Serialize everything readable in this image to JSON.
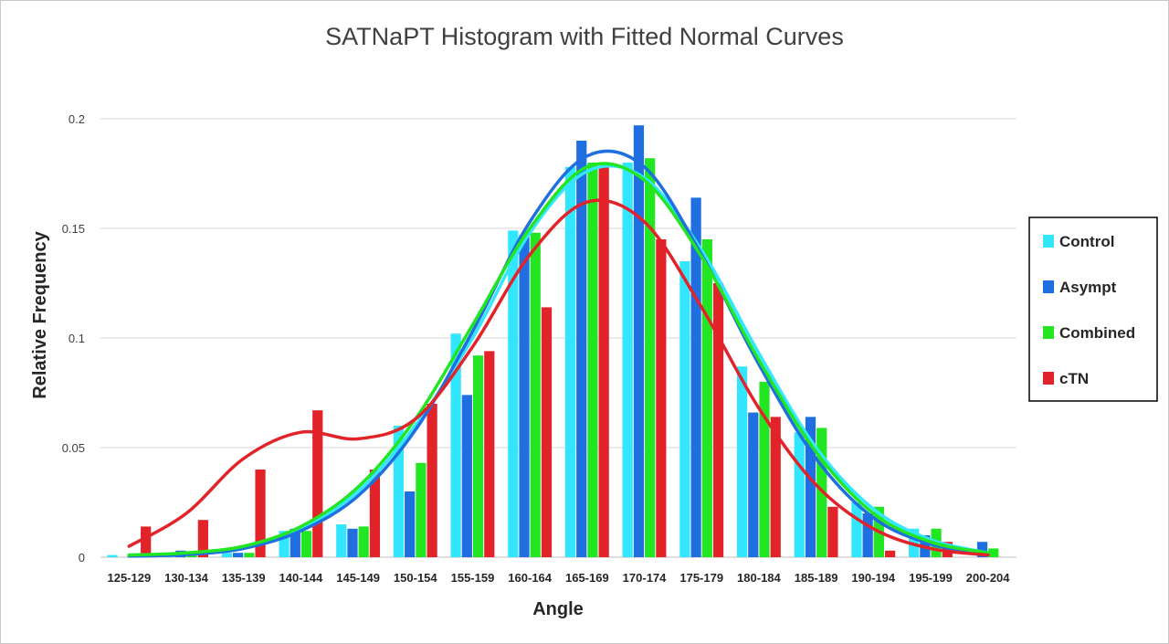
{
  "chart_data": {
    "type": "bar",
    "title": "SATNaPT Histogram with Fitted Normal Curves",
    "xlabel": "Angle",
    "ylabel": "Relative Frequency",
    "ylim": [
      0,
      0.2
    ],
    "yticks": [
      "0",
      "0.05",
      "0.1",
      "0.15",
      "0.2"
    ],
    "grid": true,
    "legend_position": "right",
    "categories": [
      "125-129",
      "130-134",
      "135-139",
      "140-144",
      "145-149",
      "150-154",
      "155-159",
      "160-164",
      "165-169",
      "170-174",
      "175-179",
      "180-184",
      "185-189",
      "190-194",
      "195-199",
      "200-204"
    ],
    "series": [
      {
        "name": "Control",
        "color": "#33e6ff",
        "values": [
          0.001,
          0.0015,
          0.002,
          0.012,
          0.015,
          0.06,
          0.102,
          0.149,
          0.178,
          0.18,
          0.135,
          0.087,
          0.057,
          0.025,
          0.013,
          0.0
        ]
      },
      {
        "name": "Asympt",
        "color": "#1f6fe0",
        "values": [
          0.0,
          0.003,
          0.002,
          0.013,
          0.013,
          0.03,
          0.074,
          0.147,
          0.19,
          0.197,
          0.164,
          0.066,
          0.064,
          0.02,
          0.01,
          0.007
        ]
      },
      {
        "name": "Combined",
        "color": "#22e622",
        "values": [
          0.0,
          0.001,
          0.002,
          0.012,
          0.014,
          0.043,
          0.092,
          0.148,
          0.18,
          0.182,
          0.145,
          0.08,
          0.059,
          0.023,
          0.013,
          0.004
        ]
      },
      {
        "name": "cTN",
        "color": "#e3232a",
        "values": [
          0.014,
          0.017,
          0.04,
          0.067,
          0.04,
          0.07,
          0.094,
          0.114,
          0.178,
          0.145,
          0.125,
          0.064,
          0.023,
          0.003,
          0.007,
          0.0
        ]
      }
    ],
    "fitted_curves": [
      {
        "series": "Control",
        "color": "#33e6ff",
        "values": [
          0.001,
          0.0015,
          0.004,
          0.013,
          0.03,
          0.06,
          0.1,
          0.148,
          0.176,
          0.173,
          0.14,
          0.093,
          0.05,
          0.022,
          0.008,
          0.002
        ]
      },
      {
        "series": "Asympt",
        "color": "#1f6fe0",
        "values": [
          0.0005,
          0.0012,
          0.004,
          0.012,
          0.028,
          0.058,
          0.103,
          0.153,
          0.183,
          0.178,
          0.138,
          0.088,
          0.045,
          0.018,
          0.006,
          0.0015
        ]
      },
      {
        "series": "Combined",
        "color": "#22e622",
        "values": [
          0.001,
          0.002,
          0.005,
          0.014,
          0.032,
          0.063,
          0.106,
          0.15,
          0.178,
          0.172,
          0.137,
          0.09,
          0.048,
          0.02,
          0.007,
          0.002
        ]
      },
      {
        "series": "cTN",
        "color": "#e3232a",
        "values": [
          0.005,
          0.02,
          0.045,
          0.057,
          0.054,
          0.063,
          0.096,
          0.138,
          0.162,
          0.153,
          0.114,
          0.068,
          0.033,
          0.013,
          0.004,
          0.001
        ]
      }
    ]
  }
}
